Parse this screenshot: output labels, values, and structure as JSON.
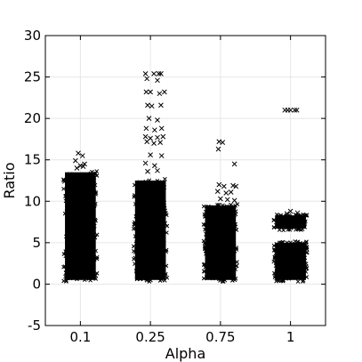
{
  "chart_data": {
    "type": "scatter",
    "title": "",
    "xlabel": "Alpha",
    "ylabel": "Ratio",
    "categories": [
      "0.1",
      "0.25",
      "0.75",
      "1"
    ],
    "ylim": [
      -5,
      30
    ],
    "yticks": [
      -5,
      0,
      5,
      10,
      15,
      20,
      25,
      30
    ],
    "grid": true,
    "marker": "x",
    "marker_color": "#000000",
    "series": [
      {
        "category": "0.1",
        "dense_range": [
          0.5,
          13.5
        ],
        "points": [
          [
            0.97,
            15.8
          ],
          [
            1.03,
            15.5
          ],
          [
            0.93,
            14.9
          ],
          [
            1.06,
            14.5
          ],
          [
            1.0,
            14.3
          ],
          [
            0.95,
            14.0
          ],
          [
            1.04,
            14.2
          ]
        ]
      },
      {
        "category": "0.25",
        "dense_range": [
          0.5,
          12.5
        ],
        "points": [
          [
            1.93,
            25.4
          ],
          [
            2.05,
            25.4
          ],
          [
            2.12,
            25.4
          ],
          [
            2.15,
            25.4
          ],
          [
            1.95,
            24.8
          ],
          [
            2.1,
            24.6
          ],
          [
            1.94,
            23.2
          ],
          [
            2.0,
            23.2
          ],
          [
            2.13,
            23.0
          ],
          [
            2.2,
            23.2
          ],
          [
            1.96,
            21.6
          ],
          [
            2.02,
            21.5
          ],
          [
            2.15,
            21.6
          ],
          [
            1.98,
            20.0
          ],
          [
            2.1,
            19.8
          ],
          [
            1.94,
            18.8
          ],
          [
            2.06,
            18.6
          ],
          [
            2.16,
            18.8
          ],
          [
            1.93,
            17.8
          ],
          [
            2.0,
            17.6
          ],
          [
            2.1,
            17.7
          ],
          [
            2.18,
            17.8
          ],
          [
            1.95,
            17.2
          ],
          [
            2.05,
            17.0
          ],
          [
            2.14,
            17.1
          ],
          [
            2.0,
            15.6
          ],
          [
            2.16,
            15.5
          ],
          [
            1.93,
            14.6
          ],
          [
            2.06,
            14.3
          ],
          [
            1.96,
            13.6
          ],
          [
            2.1,
            13.7
          ]
        ]
      },
      {
        "category": "0.75",
        "dense_range": [
          0.5,
          9.5
        ],
        "points": [
          [
            2.98,
            17.2
          ],
          [
            3.03,
            17.1
          ],
          [
            2.97,
            16.3
          ],
          [
            3.2,
            14.5
          ],
          [
            2.98,
            12.0
          ],
          [
            3.05,
            11.8
          ],
          [
            3.18,
            11.9
          ],
          [
            3.22,
            11.8
          ],
          [
            2.96,
            11.2
          ],
          [
            3.08,
            11.0
          ],
          [
            3.15,
            11.1
          ],
          [
            3.0,
            10.3
          ],
          [
            3.1,
            10.2
          ],
          [
            3.2,
            10.1
          ]
        ]
      },
      {
        "category": "1",
        "dense_range": [
          0.5,
          5.0
        ],
        "band_range": [
          6.7,
          8.3
        ],
        "points": [
          [
            3.92,
            21.0
          ],
          [
            3.96,
            21.0
          ],
          [
            4.0,
            21.0
          ],
          [
            4.06,
            21.0
          ],
          [
            4.09,
            21.0
          ],
          [
            4.0,
            8.8
          ],
          [
            4.1,
            8.6
          ],
          [
            3.95,
            8.5
          ]
        ]
      }
    ]
  }
}
